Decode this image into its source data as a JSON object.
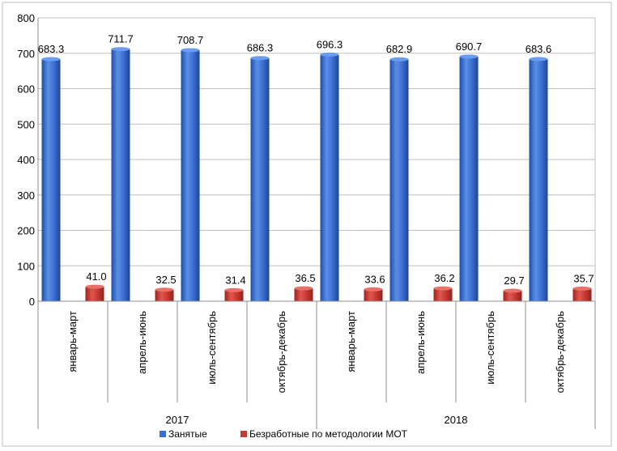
{
  "chart_data": {
    "type": "bar",
    "title": "",
    "xlabel": "",
    "ylabel": "",
    "ylim": [
      0,
      800
    ],
    "yticks": [
      "0",
      "100",
      "200",
      "300",
      "400",
      "500",
      "600",
      "700",
      "800"
    ],
    "grid": true,
    "legend_position": "bottom",
    "categories": [
      "январь-март",
      "апрель-июнь",
      "июль-сентябрь",
      "октябрь-декабрь",
      "январь-март",
      "апрель-июнь",
      "июль-сентябрь",
      "октябрь-декабрь"
    ],
    "groups": [
      {
        "label": "2017",
        "count": 4
      },
      {
        "label": "2018",
        "count": 4
      }
    ],
    "series": [
      {
        "name": "Занятые",
        "color": "#3a6fcf",
        "values": [
          683.3,
          711.7,
          708.7,
          686.3,
          696.3,
          682.9,
          690.7,
          683.6
        ],
        "labels": [
          "683.3",
          "711.7",
          "708.7",
          "686.3",
          "696.3",
          "682.9",
          "690.7",
          "683.6"
        ]
      },
      {
        "name": "Безработные по методологии МОТ",
        "color": "#c83a32",
        "values": [
          41.0,
          32.5,
          31.4,
          36.5,
          33.6,
          36.2,
          29.7,
          35.7
        ],
        "labels": [
          "41.0",
          "32.5",
          "31.4",
          "36.5",
          "33.6",
          "36.2",
          "29.7",
          "35.7"
        ]
      }
    ]
  }
}
